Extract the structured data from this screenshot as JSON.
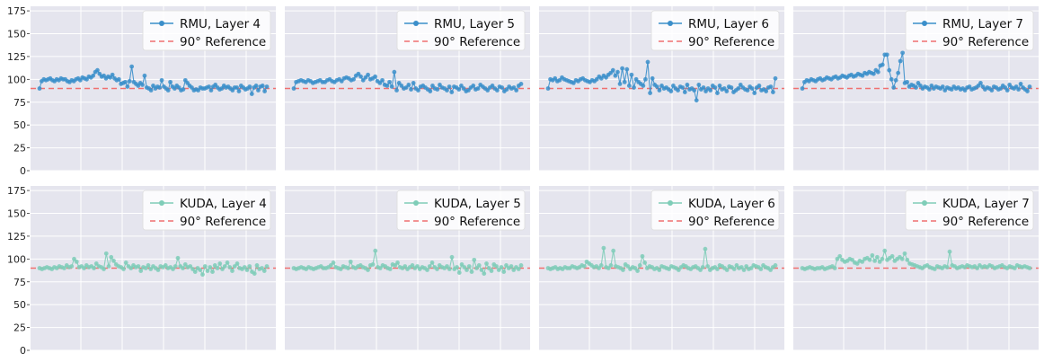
{
  "chart_data": {
    "type": "line",
    "layout": "2x4 grid of small multiples sharing y axis per row",
    "yticks": [
      0,
      25,
      50,
      75,
      100,
      125,
      150,
      175
    ],
    "ylim": [
      0,
      180
    ],
    "reference": {
      "label": "90° Reference",
      "value": 90,
      "color": "#f07070"
    },
    "panels": [
      {
        "row": 0,
        "col": 0,
        "series_name": "RMU, Layer 4",
        "color": "#3b8fca",
        "values": [
          90,
          98,
          100,
          99,
          100,
          101,
          99,
          98,
          100,
          99,
          101,
          100,
          100,
          98,
          97,
          99,
          98,
          100,
          101,
          99,
          102,
          101,
          100,
          103,
          102,
          104,
          108,
          110,
          106,
          103,
          104,
          101,
          103,
          102,
          105,
          101,
          99,
          100,
          95,
          96,
          97,
          92,
          98,
          114,
          97,
          95,
          93,
          96,
          94,
          104,
          91,
          90,
          88,
          93,
          90,
          92,
          91,
          99,
          92,
          90,
          88,
          97,
          92,
          90,
          93,
          91,
          88,
          89,
          99,
          96,
          93,
          91,
          88,
          89,
          88,
          91,
          90,
          90,
          91,
          92,
          88,
          92,
          94,
          91,
          89,
          90,
          93,
          91,
          92,
          90,
          88,
          91,
          91,
          87,
          93,
          91,
          89,
          90,
          92,
          84,
          91,
          93,
          88,
          92,
          93,
          87,
          92
        ]
      },
      {
        "row": 0,
        "col": 1,
        "series_name": "RMU, Layer 5",
        "color": "#3b8fca",
        "values": [
          90,
          97,
          98,
          99,
          98,
          97,
          99,
          98,
          96,
          97,
          98,
          99,
          97,
          97,
          99,
          100,
          98,
          97,
          99,
          100,
          98,
          101,
          102,
          101,
          99,
          100,
          104,
          106,
          103,
          99,
          102,
          105,
          100,
          101,
          103,
          98,
          96,
          99,
          94,
          93,
          97,
          92,
          108,
          88,
          96,
          93,
          90,
          91,
          94,
          89,
          96,
          90,
          88,
          92,
          93,
          91,
          89,
          87,
          93,
          90,
          89,
          94,
          91,
          90,
          88,
          92,
          86,
          92,
          91,
          89,
          93,
          90,
          87,
          88,
          91,
          93,
          89,
          90,
          94,
          92,
          90,
          88,
          91,
          93,
          90,
          88,
          92,
          91,
          87,
          89,
          92,
          90,
          91,
          88,
          93,
          95
        ]
      },
      {
        "row": 0,
        "col": 2,
        "series_name": "RMU, Layer 6",
        "color": "#3b8fca",
        "values": [
          90,
          100,
          99,
          101,
          98,
          99,
          102,
          100,
          99,
          98,
          97,
          96,
          99,
          98,
          100,
          101,
          99,
          98,
          97,
          99,
          98,
          100,
          103,
          101,
          104,
          102,
          105,
          107,
          110,
          104,
          108,
          95,
          112,
          97,
          111,
          93,
          105,
          91,
          100,
          97,
          95,
          93,
          100,
          119,
          85,
          101,
          94,
          92,
          88,
          93,
          90,
          91,
          89,
          87,
          93,
          90,
          88,
          92,
          91,
          86,
          94,
          89,
          90,
          88,
          77,
          94,
          89,
          91,
          87,
          90,
          88,
          93,
          91,
          85,
          93,
          89,
          90,
          87,
          92,
          91,
          86,
          88,
          90,
          94,
          91,
          89,
          88,
          92,
          90,
          85,
          91,
          93,
          88,
          89,
          87,
          91,
          92,
          86,
          101
        ]
      },
      {
        "row": 0,
        "col": 3,
        "series_name": "RMU, Layer 7",
        "color": "#3b8fca",
        "values": [
          90,
          97,
          99,
          98,
          100,
          99,
          98,
          100,
          101,
          99,
          100,
          102,
          101,
          100,
          102,
          103,
          101,
          102,
          104,
          103,
          102,
          104,
          105,
          103,
          104,
          106,
          105,
          104,
          107,
          106,
          108,
          107,
          106,
          110,
          108,
          115,
          116,
          127,
          127,
          110,
          100,
          91,
          99,
          107,
          120,
          129,
          96,
          97,
          92,
          94,
          93,
          91,
          96,
          93,
          90,
          92,
          91,
          89,
          93,
          90,
          92,
          91,
          90,
          92,
          88,
          91,
          90,
          89,
          92,
          90,
          91,
          89,
          90,
          88,
          91,
          92,
          89,
          90,
          91,
          93,
          96,
          92,
          89,
          91,
          90,
          88,
          92,
          91,
          89,
          90,
          93,
          91,
          88,
          94,
          91,
          90,
          92,
          89,
          95,
          91,
          89,
          87,
          92
        ]
      },
      {
        "row": 1,
        "col": 0,
        "series_name": "KUDA, Layer 4",
        "color": "#7fcdb8",
        "values": [
          90,
          89,
          90,
          91,
          90,
          89,
          91,
          90,
          92,
          91,
          90,
          93,
          91,
          92,
          100,
          97,
          91,
          92,
          90,
          93,
          91,
          92,
          90,
          95,
          92,
          91,
          89,
          106,
          92,
          102,
          98,
          94,
          92,
          91,
          89,
          96,
          92,
          90,
          93,
          91,
          92,
          87,
          91,
          90,
          93,
          89,
          92,
          90,
          88,
          92,
          91,
          93,
          90,
          91,
          89,
          92,
          101,
          92,
          90,
          94,
          91,
          92,
          89,
          86,
          90,
          88,
          83,
          92,
          87,
          91,
          86,
          93,
          90,
          95,
          89,
          92,
          96,
          91,
          87,
          92,
          95,
          90,
          89,
          91,
          88,
          92,
          86,
          84,
          93,
          89,
          90,
          87,
          92
        ]
      },
      {
        "row": 1,
        "col": 1,
        "series_name": "KUDA, Layer 5",
        "color": "#7fcdb8",
        "values": [
          90,
          89,
          90,
          91,
          90,
          89,
          91,
          90,
          89,
          90,
          91,
          92,
          90,
          90,
          91,
          93,
          96,
          91,
          90,
          89,
          92,
          91,
          90,
          97,
          91,
          90,
          92,
          93,
          91,
          90,
          88,
          93,
          94,
          109,
          91,
          90,
          93,
          92,
          90,
          89,
          94,
          93,
          96,
          91,
          90,
          92,
          89,
          91,
          93,
          90,
          92,
          89,
          91,
          90,
          88,
          92,
          96,
          91,
          89,
          93,
          91,
          90,
          92,
          89,
          102,
          89,
          91,
          85,
          94,
          91,
          88,
          92,
          86,
          99,
          90,
          93,
          88,
          84,
          95,
          90,
          87,
          94,
          92,
          88,
          91,
          86,
          93,
          90,
          92,
          88,
          91,
          89,
          93
        ]
      },
      {
        "row": 1,
        "col": 2,
        "series_name": "KUDA, Layer 6",
        "color": "#7fcdb8",
        "values": [
          90,
          89,
          90,
          91,
          89,
          90,
          89,
          91,
          90,
          90,
          92,
          91,
          90,
          91,
          93,
          92,
          97,
          95,
          93,
          91,
          92,
          90,
          93,
          112,
          91,
          90,
          93,
          109,
          92,
          91,
          90,
          88,
          94,
          92,
          89,
          91,
          90,
          87,
          93,
          103,
          96,
          90,
          92,
          91,
          89,
          90,
          88,
          92,
          91,
          90,
          89,
          92,
          91,
          90,
          88,
          91,
          93,
          92,
          90,
          89,
          91,
          92,
          90,
          88,
          91,
          111,
          92,
          88,
          90,
          91,
          89,
          93,
          92,
          90,
          88,
          92,
          91,
          89,
          93,
          90,
          91,
          88,
          92,
          89,
          90,
          93,
          92,
          91,
          89,
          93,
          91,
          90,
          88,
          91,
          93
        ]
      },
      {
        "row": 1,
        "col": 3,
        "series_name": "KUDA, Layer 7",
        "color": "#7fcdb8",
        "values": [
          90,
          89,
          90,
          91,
          90,
          89,
          90,
          90,
          91,
          89,
          90,
          91,
          92,
          90,
          100,
          103,
          99,
          97,
          98,
          100,
          99,
          96,
          95,
          98,
          97,
          100,
          101,
          99,
          104,
          98,
          102,
          97,
          100,
          109,
          99,
          101,
          103,
          98,
          100,
          102,
          100,
          106,
          99,
          95,
          94,
          93,
          92,
          91,
          90,
          92,
          93,
          91,
          90,
          89,
          92,
          91,
          90,
          92,
          91,
          108,
          93,
          92,
          90,
          91,
          92,
          91,
          93,
          92,
          91,
          92,
          90,
          93,
          91,
          92,
          91,
          93,
          92,
          90,
          91,
          92,
          93,
          91,
          90,
          92,
          91,
          90,
          93,
          92,
          91,
          92,
          91,
          90
        ]
      }
    ]
  }
}
